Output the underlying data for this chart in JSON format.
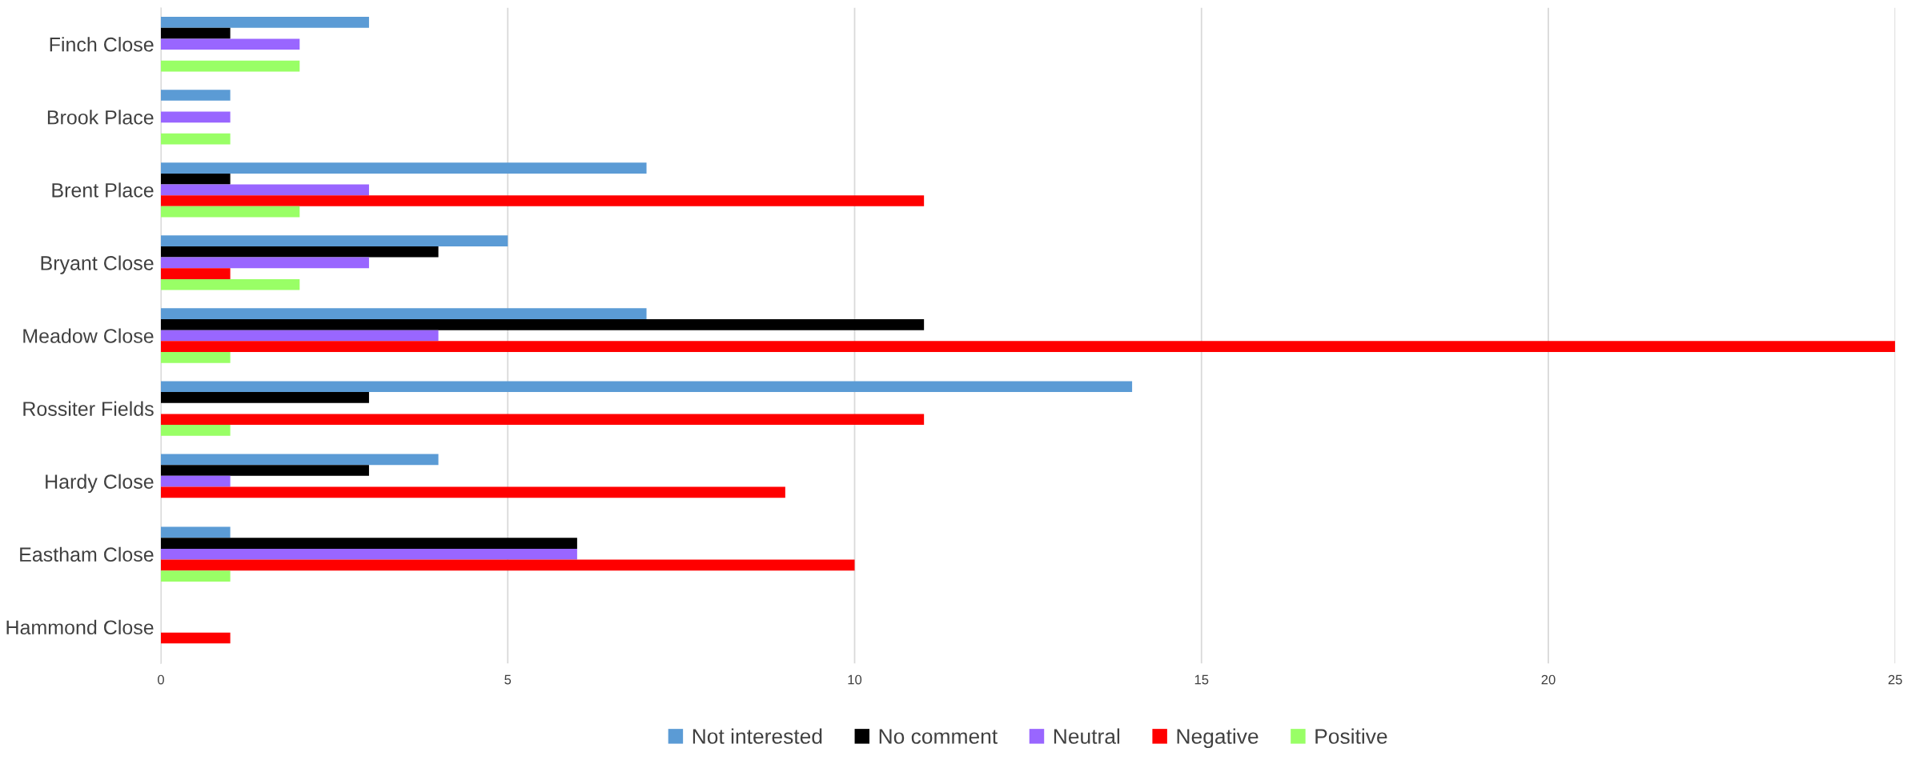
{
  "chart_data": {
    "type": "bar",
    "orientation": "horizontal",
    "categories": [
      "Finch Close",
      "Brook Place",
      "Brent Place",
      "Bryant Close",
      "Meadow Close",
      "Rossiter Fields",
      "Hardy Close",
      "Eastham Close",
      "Hammond Close"
    ],
    "series": [
      {
        "name": "Not interested",
        "color": "#5b9bd5",
        "values": [
          3,
          1,
          7,
          5,
          7,
          14,
          4,
          1,
          0
        ]
      },
      {
        "name": "No comment",
        "color": "#000000",
        "values": [
          1,
          0,
          1,
          4,
          11,
          3,
          3,
          6,
          0
        ]
      },
      {
        "name": "Neutral",
        "color": "#9966ff",
        "values": [
          2,
          1,
          3,
          3,
          4,
          0,
          1,
          6,
          0
        ]
      },
      {
        "name": "Negative",
        "color": "#ff0000",
        "values": [
          0,
          0,
          11,
          1,
          25,
          11,
          9,
          10,
          1
        ]
      },
      {
        "name": "Positive",
        "color": "#99ff66",
        "values": [
          2,
          1,
          2,
          2,
          1,
          1,
          0,
          1,
          0
        ]
      }
    ],
    "xlim": [
      0,
      25
    ],
    "xticks": [
      0,
      5,
      10,
      15,
      20,
      25
    ],
    "grid": "x",
    "legend": "bottom"
  }
}
